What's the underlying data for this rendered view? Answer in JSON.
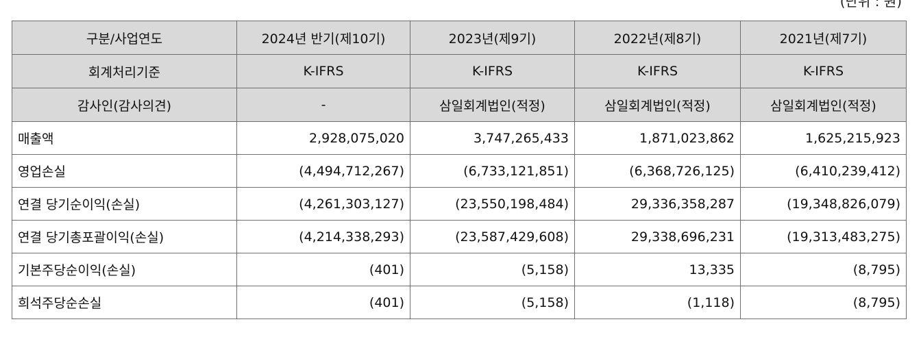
{
  "unit_note": "(단위 : 원)",
  "header_rows": [
    [
      "구분/사업연도",
      "2024년 반기(제10기)",
      "2023년(제9기)",
      "2022년(제8기)",
      "2021년(제7기)"
    ],
    [
      "회계처리기준",
      "K-IFRS",
      "K-IFRS",
      "K-IFRS",
      "K-IFRS"
    ],
    [
      "감사인(감사의견)",
      "-",
      "삼일회계법인(적정)",
      "삼일회계법인(적정)",
      "삼일회계법인(적정)"
    ]
  ],
  "rows": [
    [
      "매출액",
      "2,928,075,020",
      "3,747,265,433",
      "1,871,023,862",
      "1,625,215,923"
    ],
    [
      "영업손실",
      "(4,494,712,267)",
      "(6,733,121,851)",
      "(6,368,726,125)",
      "(6,410,239,412)"
    ],
    [
      "연결 당기순이익(손실)",
      "(4,261,303,127)",
      "(23,550,198,484)",
      "29,336,358,287",
      "(19,348,826,079)"
    ],
    [
      "연결 당기총포괄이익(손실)",
      "(4,214,338,293)",
      "(23,587,429,608)",
      "29,338,696,231",
      "(19,313,483,275)"
    ],
    [
      "기본주당순이익(손실)",
      "(401)",
      "(5,158)",
      "13,335",
      "(8,795)"
    ],
    [
      "희석주당순손실",
      "(401)",
      "(5,158)",
      "(1,118)",
      "(8,795)"
    ]
  ]
}
